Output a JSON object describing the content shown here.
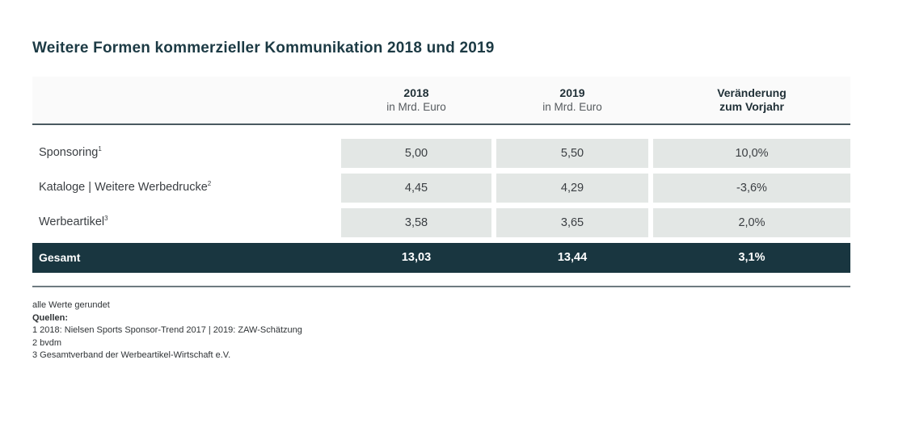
{
  "title": "Weitere Formen kommerzieller Kommunikation 2018 und 2019",
  "table": {
    "columns": [
      {
        "main": "2018",
        "sub": "in Mrd. Euro"
      },
      {
        "main": "2019",
        "sub": "in Mrd. Euro"
      },
      {
        "main": "Veränderung",
        "sub": "zum Vorjahr"
      }
    ],
    "rows": [
      {
        "label": "Sponsoring",
        "sup": "1",
        "values": [
          "5,00",
          "5,50",
          "10,0%"
        ]
      },
      {
        "label": "Kataloge | Weitere Werbedrucke",
        "sup": "2",
        "values": [
          "4,45",
          "4,29",
          "-3,6%"
        ]
      },
      {
        "label": "Werbeartikel",
        "sup": "3",
        "values": [
          "3,58",
          "3,65",
          "2,0%"
        ]
      }
    ],
    "total": {
      "label": "Gesamt",
      "values": [
        "13,03",
        "13,44",
        "3,1%"
      ]
    }
  },
  "footnotes": {
    "rounded": "alle Werte gerundet",
    "sources_label": "Quellen:",
    "items": [
      "1  2018: Nielsen Sports Sponsor-Trend 2017 | 2019: ZAW-Schätzung",
      "2 bvdm",
      "3 Gesamtverband der Werbeartikel-Wirtschaft e.V."
    ]
  },
  "colors": {
    "title": "#1c3a44",
    "total_row_bg": "#193640",
    "value_cell_bg": "#e3e7e5"
  }
}
